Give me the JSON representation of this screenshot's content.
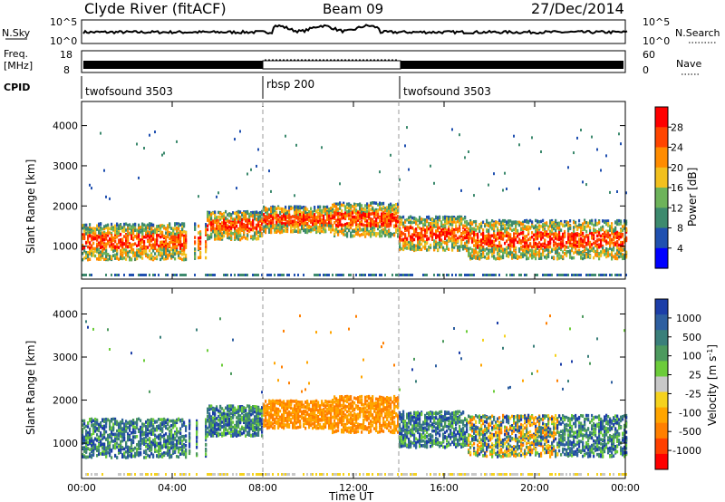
{
  "header": {
    "station": "Clyde River (fitACF)",
    "beam": "Beam 09",
    "date": "27/Dec/2014"
  },
  "top_panels": {
    "nsky_label": "N.Sky",
    "nsky_ticks": [
      "10^5",
      "10^0"
    ],
    "nsearch_label": "N.Search",
    "nsearch_ticks": [
      "10^5",
      "10^0"
    ],
    "freq_label_1": "Freq.",
    "freq_label_2": "[MHz]",
    "freq_ticks": [
      "18",
      "8"
    ],
    "nave_label": "Nave",
    "nave_ticks": [
      "60",
      "0"
    ],
    "cpid_label": "CPID",
    "programs": [
      {
        "name": "twofsound 3503",
        "start_hour": 0,
        "end_hour": 8
      },
      {
        "name": "rbsp 200",
        "start_hour": 8,
        "end_hour": 14
      },
      {
        "name": "twofsound 3503",
        "start_hour": 14,
        "end_hour": 24
      }
    ]
  },
  "chart_data": [
    {
      "type": "heatmap",
      "title": "",
      "xlabel": "Time UT",
      "ylabel": "Slant Range [km]",
      "xlim": [
        0,
        24
      ],
      "ylim": [
        180,
        4600
      ],
      "xticks": [
        "00:00",
        "04:00",
        "08:00",
        "12:00",
        "16:00",
        "20:00",
        "00:00"
      ],
      "yticks": [
        "1000",
        "2000",
        "3000",
        "4000"
      ],
      "colorbar": {
        "label": "Power [dB]",
        "ticks": [
          "28",
          "24",
          "20",
          "16",
          "12",
          "8",
          "4"
        ],
        "range": [
          0,
          30
        ],
        "colors": [
          "#0000ff",
          "#2050b0",
          "#3d8a6e",
          "#6db35a",
          "#f2c01e",
          "#ff8c00",
          "#ff4500",
          "#ff0000"
        ]
      }
    },
    {
      "type": "heatmap",
      "title": "",
      "xlabel": "Time UT",
      "ylabel": "Slant Range [km]",
      "xlim": [
        0,
        24
      ],
      "ylim": [
        180,
        4600
      ],
      "xticks": [
        "00:00",
        "04:00",
        "08:00",
        "12:00",
        "16:00",
        "20:00",
        "00:00"
      ],
      "yticks": [
        "1000",
        "2000",
        "3000",
        "4000"
      ],
      "colorbar": {
        "label": "Velocity [m s",
        "label_sup": "-1",
        "label_end": "]",
        "ticks": [
          "1000",
          "500",
          "100",
          "25",
          "-25",
          "-100",
          "-500",
          "-1000"
        ],
        "colors": [
          "#1c3ea8",
          "#2e5fa0",
          "#3a7f7a",
          "#4d9a5e",
          "#6ccc3a",
          "#c8c8c8",
          "#f5d21e",
          "#ffa500",
          "#ff7f00",
          "#ff4000",
          "#ff0000"
        ]
      }
    }
  ]
}
